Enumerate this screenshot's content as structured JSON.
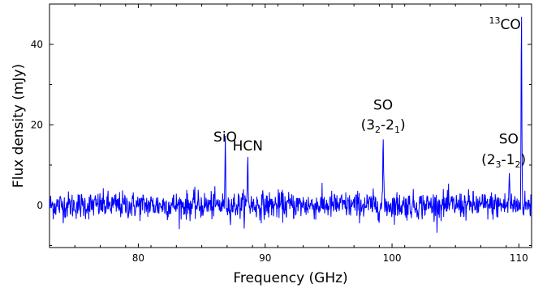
{
  "chart_data": {
    "type": "line",
    "xlabel": "Frequency (GHz)",
    "ylabel": "Flux density (mJy)",
    "xlim": [
      73,
      111
    ],
    "ylim": [
      -10.5,
      50
    ],
    "xticks": [
      80,
      90,
      100,
      110
    ],
    "yticks": [
      0,
      20,
      40
    ],
    "grid": false,
    "line_color": "#0000ff",
    "noise_rms_mjy": 1.7,
    "series": [
      {
        "lines": [
          {
            "x": 86.85,
            "peak": 14.0
          },
          {
            "x": 88.63,
            "peak": 12.0
          },
          {
            "x": 99.3,
            "peak": 17.0
          },
          {
            "x": 109.25,
            "peak": 8.5
          },
          {
            "x": 110.2,
            "peak": 48.0
          }
        ]
      }
    ],
    "annotations": [
      {
        "id": "sio",
        "x": 86.85,
        "y": 15.8,
        "parts": [
          {
            "t": "SiO"
          }
        ]
      },
      {
        "id": "hcn",
        "x": 88.63,
        "y": 13.6,
        "parts": [
          {
            "t": "HCN"
          }
        ]
      },
      {
        "id": "so1-name",
        "x": 99.3,
        "y": 23.8,
        "parts": [
          {
            "t": "SO"
          }
        ]
      },
      {
        "id": "so1-trans",
        "x": 99.3,
        "y": 18.8,
        "parts": [
          {
            "t": "(3"
          },
          {
            "t": "2",
            "sub": true
          },
          {
            "t": "-2"
          },
          {
            "t": "1",
            "sub": true
          },
          {
            "t": ")"
          }
        ]
      },
      {
        "id": "so2-name",
        "x": 109.2,
        "y": 15.3,
        "parts": [
          {
            "t": "SO"
          }
        ]
      },
      {
        "id": "so2-trans",
        "x": 108.8,
        "y": 10.2,
        "parts": [
          {
            "t": "(2"
          },
          {
            "t": "3",
            "sub": true
          },
          {
            "t": "-1"
          },
          {
            "t": "2",
            "sub": true
          },
          {
            "t": ")"
          }
        ]
      },
      {
        "id": "13co",
        "x": 108.9,
        "y": 43.8,
        "parts": [
          {
            "t": "13",
            "sup": true
          },
          {
            "t": "CO"
          }
        ]
      }
    ]
  }
}
